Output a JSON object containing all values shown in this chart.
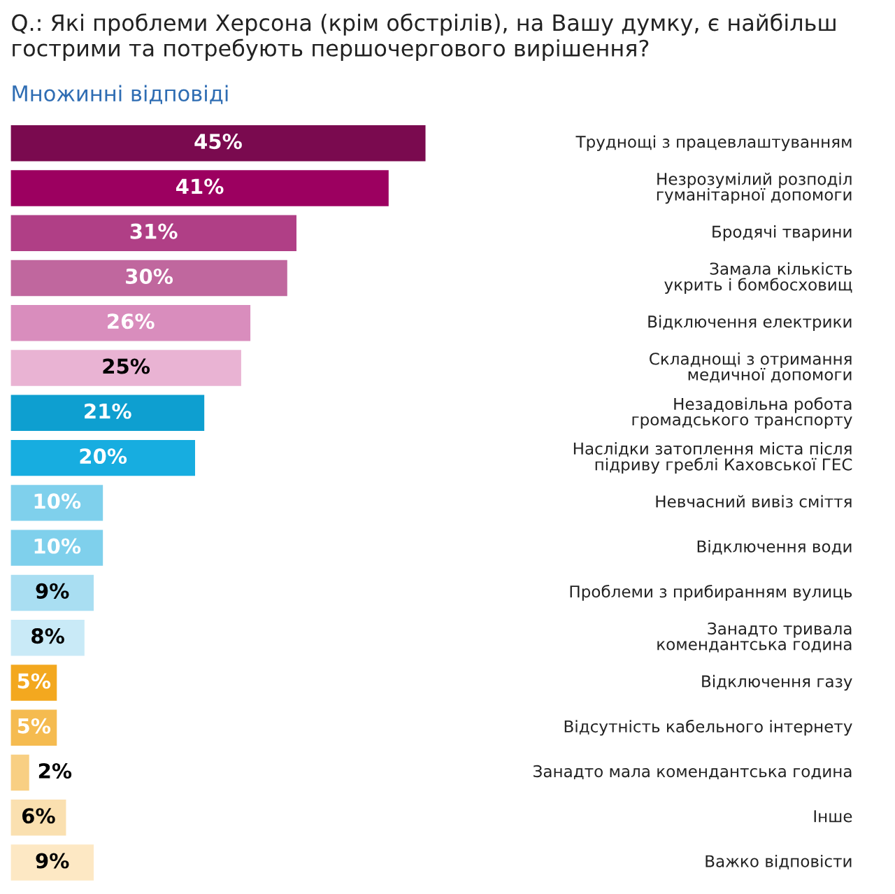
{
  "chart_data": {
    "type": "bar",
    "orientation": "horizontal",
    "title": "Q.: Які проблеми Херсона (крім обстрілів), на Вашу думку, є найбільш\nгострими та потребують першочергового вирішення?",
    "subtitle": "Множинні відповіді",
    "categories": [
      "Труднощі з працевлаштуванням",
      "Незрозумілий розподіл\nгуманітарної допомоги",
      "Бродячі тварини",
      "Замала кількість\nукрить і бомбосховищ",
      "Відключення електрики",
      "Складнощі з отримання\nмедичної допомоги",
      "Незадовільна робота\nгромадського транспорту",
      "Наслідки затоплення міста після\nпідриву греблі Каховської ГЕС",
      "Невчасний вивіз сміття",
      "Відключення води",
      "Проблеми з прибиранням вулиць",
      "Занадто тривала\nкомендантська година",
      "Відключення газу",
      "Відсутність кабельного інтернету",
      "Занадто мала комендантська година",
      "Інше",
      "Важко відповісти"
    ],
    "values": [
      45,
      41,
      31,
      30,
      26,
      25,
      21,
      20,
      10,
      10,
      9,
      8,
      5,
      5,
      2,
      6,
      9
    ],
    "colors": [
      "#7a0a4f",
      "#9c0060",
      "#b03f86",
      "#c0679e",
      "#d98dbd",
      "#e9b3d3",
      "#0e9fd0",
      "#17ade0",
      "#7fd0ec",
      "#7fd0ec",
      "#a9def2",
      "#c9eaf7",
      "#f3a81f",
      "#f5bb50",
      "#f8cf83",
      "#fae0b0",
      "#fde8c4"
    ],
    "value_labels": [
      "45%",
      "41%",
      "31%",
      "30%",
      "26%",
      "25%",
      "21%",
      "20%",
      "10%",
      "10%",
      "9%",
      "8%",
      "5%",
      "5%",
      "2%",
      "6%",
      "9%"
    ]
  }
}
